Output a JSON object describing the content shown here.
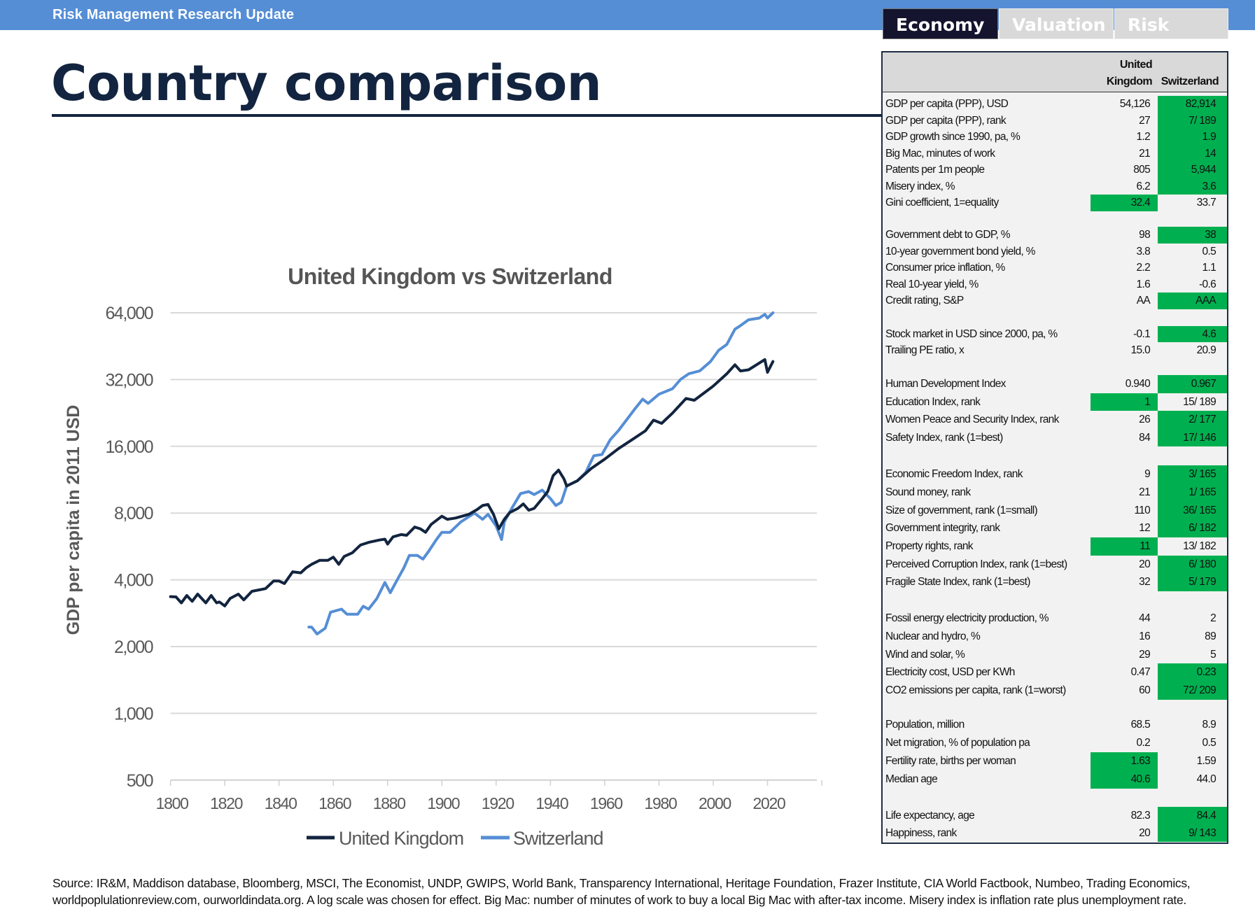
{
  "header": {
    "title": "Risk Management Research Update"
  },
  "tabs": [
    {
      "label": "Economy",
      "active": true
    },
    {
      "label": "Valuation",
      "active": false
    },
    {
      "label": "Risk",
      "active": false
    }
  ],
  "page_title": "Country comparison",
  "table": {
    "col_uk_line1": "United",
    "col_uk_line2": "Kingdom",
    "col_ch": "Switzerland",
    "highlight_color": "#00b050",
    "groups": [
      {
        "rows": [
          {
            "label": "GDP per capita (PPP), USD",
            "uk": "54,126",
            "ch": "82,914",
            "best": "ch"
          },
          {
            "label": "GDP per capita (PPP), rank",
            "uk": "27",
            "ch": "7/ 189",
            "best": "ch"
          },
          {
            "label": "GDP growth since 1990, pa, %",
            "uk": "1.2",
            "ch": "1.9",
            "best": "ch"
          },
          {
            "label": "Big Mac, minutes of work",
            "uk": "21",
            "ch": "14",
            "best": "ch"
          },
          {
            "label": "Patents per 1m people",
            "uk": "805",
            "ch": "5,944",
            "best": "ch"
          },
          {
            "label": "Misery index, %",
            "uk": "6.2",
            "ch": "3.6",
            "best": "ch"
          },
          {
            "label": "Gini coefficient, 1=equality",
            "uk": "32.4",
            "ch": "33.7",
            "best": "uk"
          }
        ]
      },
      {
        "rows": [
          {
            "label": "Government debt to GDP, %",
            "uk": "98",
            "ch": "38",
            "best": "ch"
          },
          {
            "label": "10-year government bond yield, %",
            "uk": "3.8",
            "ch": "0.5",
            "best": null
          },
          {
            "label": "Consumer price inflation, %",
            "uk": "2.2",
            "ch": "1.1",
            "best": null
          },
          {
            "label": "Real 10-year yield, %",
            "uk": "1.6",
            "ch": "-0.6",
            "best": null
          },
          {
            "label": "Credit rating, S&P",
            "uk": "AA",
            "ch": "AAA",
            "best": "ch"
          }
        ]
      },
      {
        "rows": [
          {
            "label": "Stock market in USD since 2000, pa, %",
            "uk": "-0.1",
            "ch": "4.6",
            "best": "ch"
          },
          {
            "label": "Trailing PE ratio, x",
            "uk": "15.0",
            "ch": "20.9",
            "best": null
          }
        ]
      },
      {
        "rows": [
          {
            "label": "Human Development Index",
            "uk": "0.940",
            "ch": "0.967",
            "best": "ch"
          },
          {
            "label": "Education Index, rank",
            "uk": "1",
            "ch": "15/ 189",
            "best": "uk"
          },
          {
            "label": "Women Peace and Security Index, rank",
            "uk": "26",
            "ch": "2/ 177",
            "best": "ch"
          },
          {
            "label": "Safety Index, rank (1=best)",
            "uk": "84",
            "ch": "17/ 146",
            "best": "ch"
          }
        ]
      },
      {
        "rows": [
          {
            "label": "Economic Freedom Index, rank",
            "uk": "9",
            "ch": "3/ 165",
            "best": "ch"
          },
          {
            "label": "Sound money, rank",
            "uk": "21",
            "ch": "1/ 165",
            "best": "ch"
          },
          {
            "label": "Size of government, rank (1=small)",
            "uk": "110",
            "ch": "36/ 165",
            "best": "ch"
          },
          {
            "label": "Government integrity, rank",
            "uk": "12",
            "ch": "6/ 182",
            "best": "ch"
          },
          {
            "label": "Property rights, rank",
            "uk": "11",
            "ch": "13/ 182",
            "best": "uk"
          },
          {
            "label": "Perceived Corruption Index, rank (1=best)",
            "uk": "20",
            "ch": "6/ 180",
            "best": "ch"
          },
          {
            "label": "Fragile State Index, rank (1=best)",
            "uk": "32",
            "ch": "5/ 179",
            "best": "ch"
          }
        ]
      },
      {
        "rows": [
          {
            "label": "Fossil energy electricity production, %",
            "uk": "44",
            "ch": "2",
            "best": null
          },
          {
            "label": "Nuclear and hydro, %",
            "uk": "16",
            "ch": "89",
            "best": null
          },
          {
            "label": "Wind and solar, %",
            "uk": "29",
            "ch": "5",
            "best": null
          },
          {
            "label": "Electricity cost, USD per KWh",
            "uk": "0.47",
            "ch": "0.23",
            "best": "ch"
          },
          {
            "label": "CO2 emissions per capita, rank (1=worst)",
            "uk": "60",
            "ch": "72/ 209",
            "best": "ch"
          }
        ]
      },
      {
        "rows": [
          {
            "label": "Population, million",
            "uk": "68.5",
            "ch": "8.9",
            "best": null
          },
          {
            "label": "Net migration, %  of population pa",
            "uk": "0.2",
            "ch": "0.5",
            "best": null
          },
          {
            "label": "Fertility rate, births per woman",
            "uk": "1.63",
            "ch": "1.59",
            "best": "uk"
          },
          {
            "label": "Median age",
            "uk": "40.6",
            "ch": "44.0",
            "best": "uk"
          }
        ]
      },
      {
        "rows": [
          {
            "label": "Life expectancy, age",
            "uk": "82.3",
            "ch": "84.4",
            "best": "ch"
          },
          {
            "label": "Happiness, rank",
            "uk": "20",
            "ch": "9/ 143",
            "best": "ch"
          }
        ]
      }
    ]
  },
  "footer": {
    "line1": "Source: IR&M, Maddison database, Bloomberg, MSCI, The Economist, UNDP, GWIPS, World Bank, Transparency International, Heritage Foundation, Frazer Institute, CIA World Factbook, Numbeo, Trading Economics,",
    "line2": "worldpoplulationreview.com, ourworldindata.org. A log scale was chosen for effect. Big Mac: number of minutes of work to buy a local Big Mac with after-tax income. Misery index is inflation rate plus unemployment rate."
  },
  "chart_data": {
    "type": "line",
    "title": "United Kingdom vs Switzerland",
    "xlabel": "",
    "ylabel": "GDP per capita in 2011 USD",
    "yscale": "log2",
    "ylim": [
      500,
      64000
    ],
    "xlim": [
      1800,
      2040
    ],
    "yticks": [
      "500",
      "1,000",
      "2,000",
      "4,000",
      "8,000",
      "16,000",
      "32,000",
      "64,000"
    ],
    "ytick_values": [
      500,
      1000,
      2000,
      4000,
      8000,
      16000,
      32000,
      64000
    ],
    "xticks": [
      "1800",
      "1820",
      "1840",
      "1860",
      "1880",
      "1900",
      "1920",
      "1940",
      "1960",
      "1980",
      "2000",
      "2020"
    ],
    "grid": true,
    "legend_position": "bottom",
    "series": [
      {
        "name": "United Kingdom",
        "color": "#12243f",
        "points": [
          [
            1800,
            3360
          ],
          [
            1802,
            3350
          ],
          [
            1804,
            3150
          ],
          [
            1806,
            3400
          ],
          [
            1808,
            3200
          ],
          [
            1810,
            3450
          ],
          [
            1813,
            3150
          ],
          [
            1815,
            3400
          ],
          [
            1817,
            3150
          ],
          [
            1818,
            3180
          ],
          [
            1820,
            3050
          ],
          [
            1822,
            3300
          ],
          [
            1825,
            3450
          ],
          [
            1827,
            3250
          ],
          [
            1830,
            3550
          ],
          [
            1835,
            3650
          ],
          [
            1838,
            3950
          ],
          [
            1840,
            3950
          ],
          [
            1842,
            3850
          ],
          [
            1845,
            4350
          ],
          [
            1848,
            4300
          ],
          [
            1850,
            4530
          ],
          [
            1852,
            4700
          ],
          [
            1855,
            4900
          ],
          [
            1858,
            4900
          ],
          [
            1860,
            5060
          ],
          [
            1862,
            4700
          ],
          [
            1864,
            5100
          ],
          [
            1867,
            5300
          ],
          [
            1870,
            5740
          ],
          [
            1873,
            5900
          ],
          [
            1877,
            6050
          ],
          [
            1879,
            6100
          ],
          [
            1880,
            5800
          ],
          [
            1882,
            6250
          ],
          [
            1885,
            6400
          ],
          [
            1887,
            6350
          ],
          [
            1890,
            6920
          ],
          [
            1892,
            6800
          ],
          [
            1894,
            6550
          ],
          [
            1896,
            7100
          ],
          [
            1900,
            7740
          ],
          [
            1902,
            7500
          ],
          [
            1905,
            7600
          ],
          [
            1910,
            7900
          ],
          [
            1913,
            8300
          ],
          [
            1915,
            8650
          ],
          [
            1917,
            8750
          ],
          [
            1919,
            7900
          ],
          [
            1921,
            6790
          ],
          [
            1923,
            7500
          ],
          [
            1925,
            8040
          ],
          [
            1928,
            8400
          ],
          [
            1930,
            8800
          ],
          [
            1932,
            8240
          ],
          [
            1934,
            8400
          ],
          [
            1937,
            9300
          ],
          [
            1939,
            10000
          ],
          [
            1941,
            11800
          ],
          [
            1943,
            12500
          ],
          [
            1945,
            11400
          ],
          [
            1946,
            10600
          ],
          [
            1950,
            11200
          ],
          [
            1955,
            12700
          ],
          [
            1960,
            14000
          ],
          [
            1965,
            15600
          ],
          [
            1970,
            17100
          ],
          [
            1975,
            18800
          ],
          [
            1978,
            21000
          ],
          [
            1981,
            20300
          ],
          [
            1985,
            22600
          ],
          [
            1990,
            26300
          ],
          [
            1993,
            25800
          ],
          [
            2000,
            29900
          ],
          [
            2005,
            34000
          ],
          [
            2008,
            37300
          ],
          [
            2010,
            35000
          ],
          [
            2013,
            35400
          ],
          [
            2019,
            39400
          ],
          [
            2020,
            34500
          ],
          [
            2022,
            38600
          ]
        ]
      },
      {
        "name": "Switzerland",
        "color": "#558ed5",
        "points": [
          [
            1851,
            2450
          ],
          [
            1852,
            2450
          ],
          [
            1854,
            2280
          ],
          [
            1857,
            2420
          ],
          [
            1859,
            2860
          ],
          [
            1863,
            2950
          ],
          [
            1865,
            2800
          ],
          [
            1869,
            2800
          ],
          [
            1871,
            3040
          ],
          [
            1873,
            2950
          ],
          [
            1876,
            3290
          ],
          [
            1879,
            3890
          ],
          [
            1881,
            3500
          ],
          [
            1883,
            3890
          ],
          [
            1886,
            4530
          ],
          [
            1888,
            5150
          ],
          [
            1891,
            5150
          ],
          [
            1893,
            4960
          ],
          [
            1895,
            5350
          ],
          [
            1898,
            6080
          ],
          [
            1900,
            6550
          ],
          [
            1903,
            6550
          ],
          [
            1907,
            7300
          ],
          [
            1912,
            8000
          ],
          [
            1915,
            7500
          ],
          [
            1917,
            7900
          ],
          [
            1920,
            7000
          ],
          [
            1922,
            6080
          ],
          [
            1923,
            7300
          ],
          [
            1926,
            8500
          ],
          [
            1929,
            9800
          ],
          [
            1932,
            10000
          ],
          [
            1934,
            9700
          ],
          [
            1937,
            10150
          ],
          [
            1940,
            9300
          ],
          [
            1942,
            8650
          ],
          [
            1944,
            8950
          ],
          [
            1946,
            10600
          ],
          [
            1950,
            11200
          ],
          [
            1953,
            12200
          ],
          [
            1956,
            14500
          ],
          [
            1959,
            14700
          ],
          [
            1962,
            17100
          ],
          [
            1965,
            18800
          ],
          [
            1968,
            21000
          ],
          [
            1971,
            23500
          ],
          [
            1974,
            26100
          ],
          [
            1976,
            25000
          ],
          [
            1980,
            27500
          ],
          [
            1985,
            29100
          ],
          [
            1988,
            32100
          ],
          [
            1991,
            34000
          ],
          [
            1995,
            35000
          ],
          [
            1999,
            38600
          ],
          [
            2002,
            43400
          ],
          [
            2005,
            46100
          ],
          [
            2008,
            54000
          ],
          [
            2010,
            56000
          ],
          [
            2013,
            59500
          ],
          [
            2017,
            60600
          ],
          [
            2019,
            63000
          ],
          [
            2020,
            60600
          ],
          [
            2022,
            64000
          ]
        ]
      }
    ]
  }
}
